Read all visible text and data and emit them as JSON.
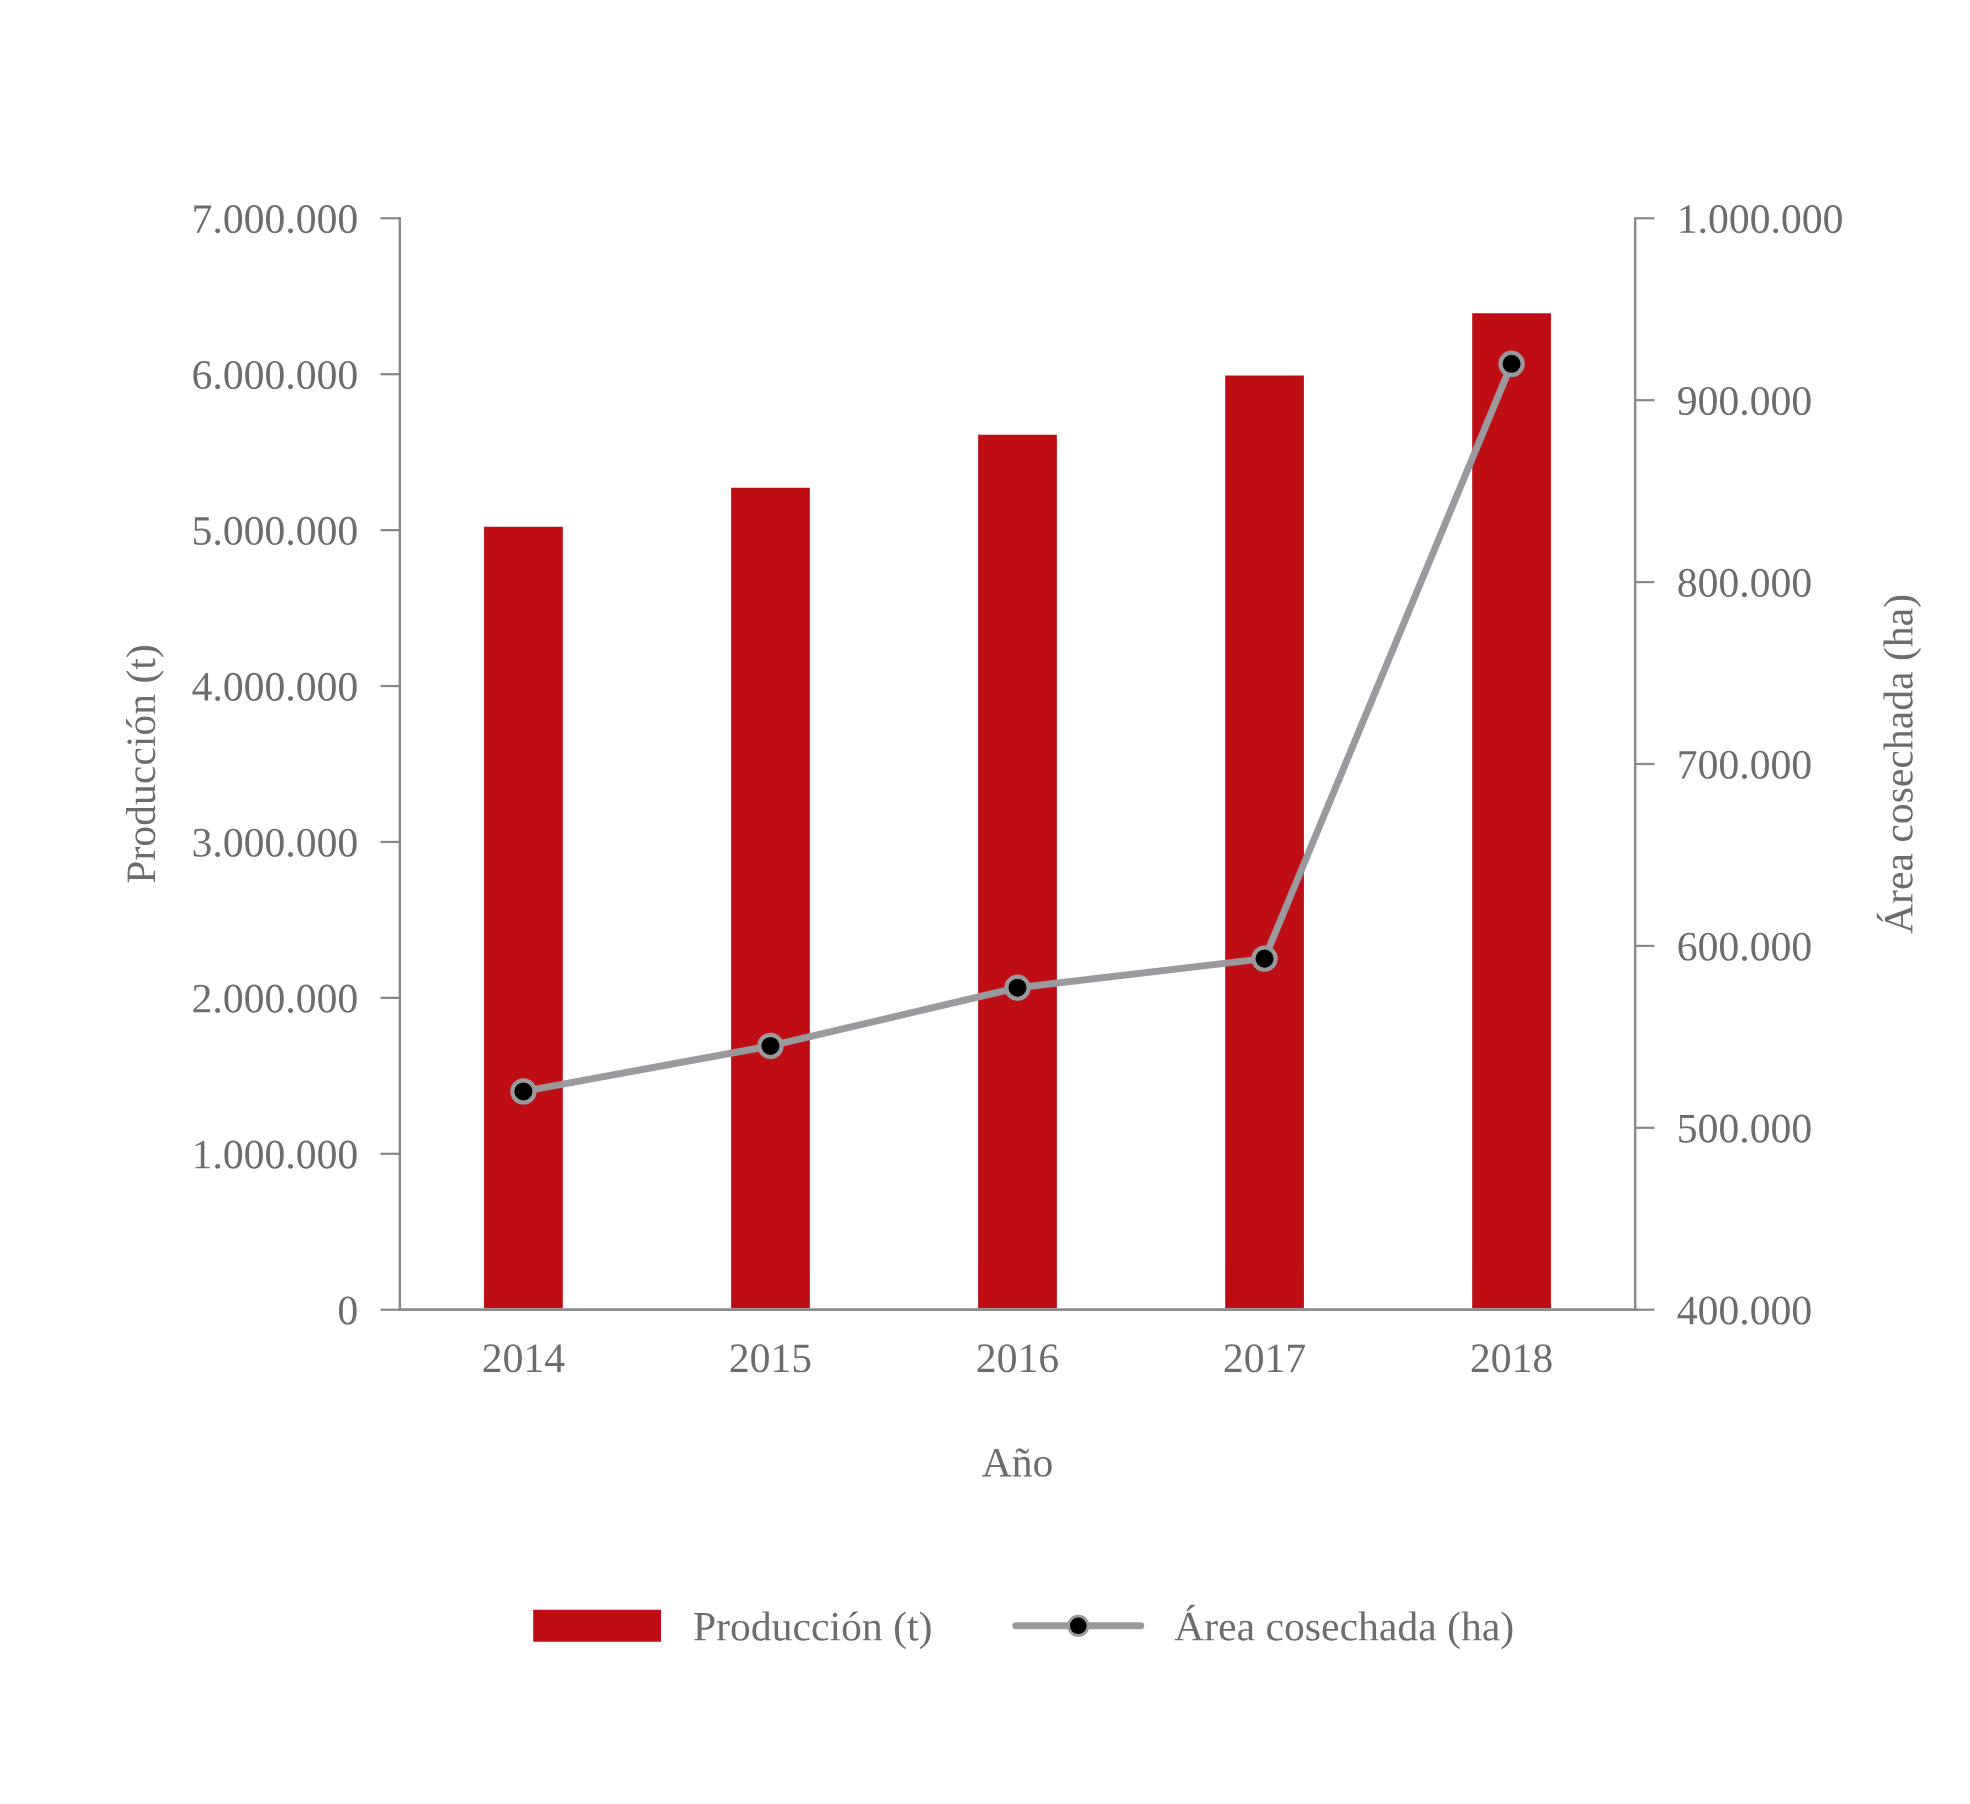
{
  "chart_data": {
    "type": "bar",
    "xlabel": "Año",
    "ylabel": "Producción (t)",
    "y2label": "Área cosechada (ha)",
    "categories": [
      "2014",
      "2015",
      "2016",
      "2017",
      "2018"
    ],
    "series": [
      {
        "name": "Producción (t)",
        "color": "#be0e14",
        "values": [
          5030000,
          5280000,
          5620000,
          6000000,
          6400000
        ]
      },
      {
        "name": "Área cosechada (ha)",
        "type": "line",
        "axis": "y2",
        "color": "#9a9a9e",
        "marker": "circle",
        "values": [
          520000,
          545000,
          577000,
          593000,
          920000
        ]
      }
    ],
    "ylim": [
      0,
      7000000
    ],
    "yticks": [
      {
        "value": 0,
        "label": "0"
      },
      {
        "value": 1000000,
        "label": "1.000.000"
      },
      {
        "value": 2000000,
        "label": "2.000.000"
      },
      {
        "value": 3000000,
        "label": "3.000.000"
      },
      {
        "value": 4000000,
        "label": "4.000.000"
      },
      {
        "value": 5000000,
        "label": "5.000.000"
      },
      {
        "value": 6000000,
        "label": "6.000.000"
      },
      {
        "value": 7000000,
        "label": "7.000.000"
      }
    ],
    "y2lim": [
      400000,
      1000000
    ],
    "y2ticks": [
      {
        "value": 400000,
        "label": "400.000"
      },
      {
        "value": 500000,
        "label": "500.000"
      },
      {
        "value": 600000,
        "label": "600.000"
      },
      {
        "value": 700000,
        "label": "700.000"
      },
      {
        "value": 800000,
        "label": "800.000"
      },
      {
        "value": 900000,
        "label": "900.000"
      },
      {
        "value": 1000000,
        "label": "1.000.000"
      }
    ],
    "grid": false,
    "legend": "bottom"
  }
}
